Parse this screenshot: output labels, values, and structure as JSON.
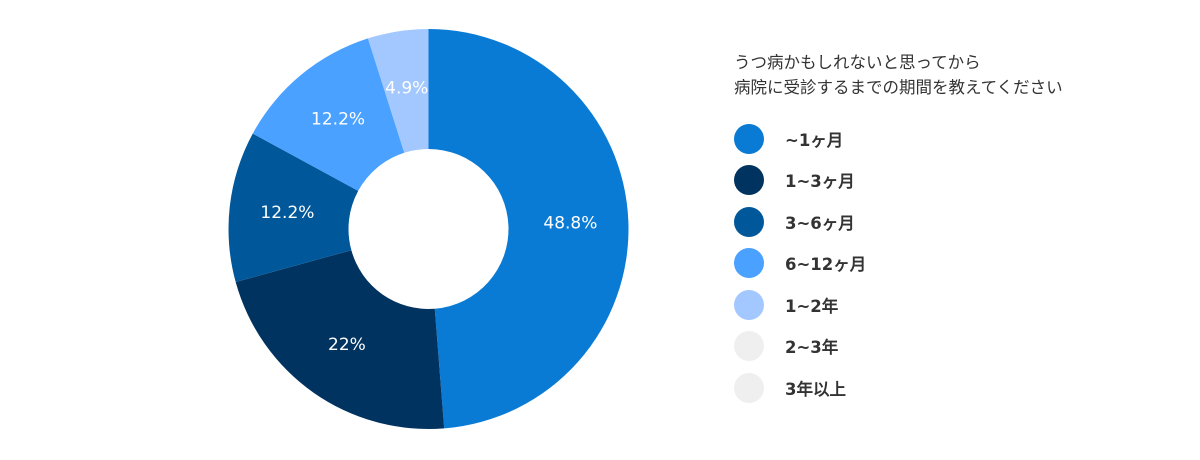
{
  "chart_data": {
    "type": "pie",
    "variant": "donut",
    "title": "うつ病かもしれないと思ってから病院に受診するまでの期間を教えてください",
    "title_lines": [
      "うつ病かもしれないと思ってから",
      "病院に受診するまでの期間を教えてください"
    ],
    "categories": [
      "~1ヶ月",
      "1~3ヶ月",
      "3~6ヶ月",
      "6~12ヶ月",
      "1~2年",
      "2~3年",
      "3年以上"
    ],
    "values": [
      48.8,
      22,
      12.2,
      12.2,
      4.9,
      0,
      0
    ],
    "data_labels": [
      "48.8%",
      "22%",
      "12.2%",
      "12.2%",
      "4.9%",
      "",
      ""
    ],
    "colors": [
      "#0A7BD4",
      "#00335F",
      "#00589B",
      "#4AA1FF",
      "#A3C8FF",
      "#EFEFEF",
      "#EFEFEF"
    ],
    "legend_position": "right",
    "start_angle": "12 o'clock, clockwise",
    "center": [
      428.5,
      229
    ],
    "outer_radius": 200,
    "inner_radius": 80
  },
  "legend": {
    "title_line1": "うつ病かもしれないと思ってから",
    "title_line2": "病院に受診するまでの期間を教えてください",
    "items": [
      {
        "label": "~1ヶ月",
        "color": "#0A7BD4"
      },
      {
        "label": "1~3ヶ月",
        "color": "#00335F"
      },
      {
        "label": "3~6ヶ月",
        "color": "#00589B"
      },
      {
        "label": "6~12ヶ月",
        "color": "#4AA1FF"
      },
      {
        "label": "1~2年",
        "color": "#A3C8FF"
      },
      {
        "label": "2~3年",
        "color": "#EFEFEF"
      },
      {
        "label": "3年以上",
        "color": "#EFEFEF"
      }
    ]
  }
}
